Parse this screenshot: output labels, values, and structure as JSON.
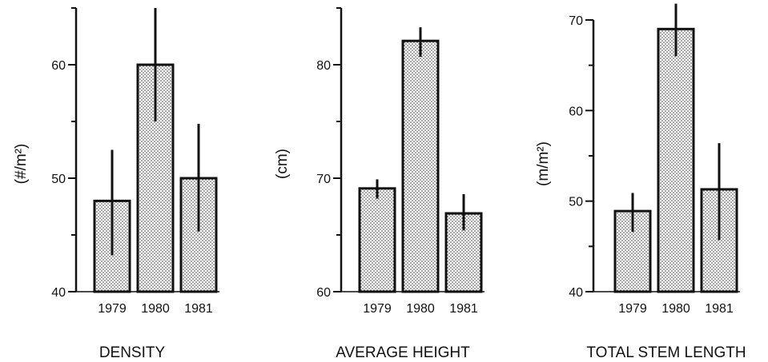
{
  "chart_data": [
    {
      "type": "bar",
      "title": "DENSITY",
      "ylabel": "(#/m²)",
      "categories": [
        "1979",
        "1980",
        "1981"
      ],
      "values": [
        48,
        60,
        50
      ],
      "errors": [
        [
          43.2,
          52.5
        ],
        [
          55,
          65
        ],
        [
          45.3,
          54.8
        ]
      ],
      "ylim": [
        40,
        65
      ],
      "major_ticks": [
        40,
        50,
        60
      ],
      "minor_ticks": [
        45,
        55,
        65
      ],
      "grid": false
    },
    {
      "type": "bar",
      "title": "AVERAGE HEIGHT",
      "ylabel": "(cm)",
      "categories": [
        "1979",
        "1980",
        "1981"
      ],
      "values": [
        69.1,
        82.1,
        66.9
      ],
      "errors": [
        [
          68.2,
          69.9
        ],
        [
          80.7,
          83.3
        ],
        [
          65.4,
          68.6
        ]
      ],
      "ylim": [
        60,
        85
      ],
      "major_ticks": [
        60,
        70,
        80
      ],
      "minor_ticks": [
        65,
        75,
        85
      ],
      "grid": false
    },
    {
      "type": "bar",
      "title": "TOTAL STEM LENGTH",
      "ylabel": "(m/m²)",
      "categories": [
        "1979",
        "1980",
        "1981"
      ],
      "values": [
        48.9,
        69,
        51.3
      ],
      "errors": [
        [
          46.6,
          50.9
        ],
        [
          66,
          71.8
        ],
        [
          45.7,
          56.4
        ]
      ],
      "ylim": [
        40,
        70
      ],
      "major_ticks": [
        40,
        50,
        60,
        70
      ],
      "minor_ticks": [
        45,
        55,
        65
      ],
      "grid": false
    }
  ]
}
